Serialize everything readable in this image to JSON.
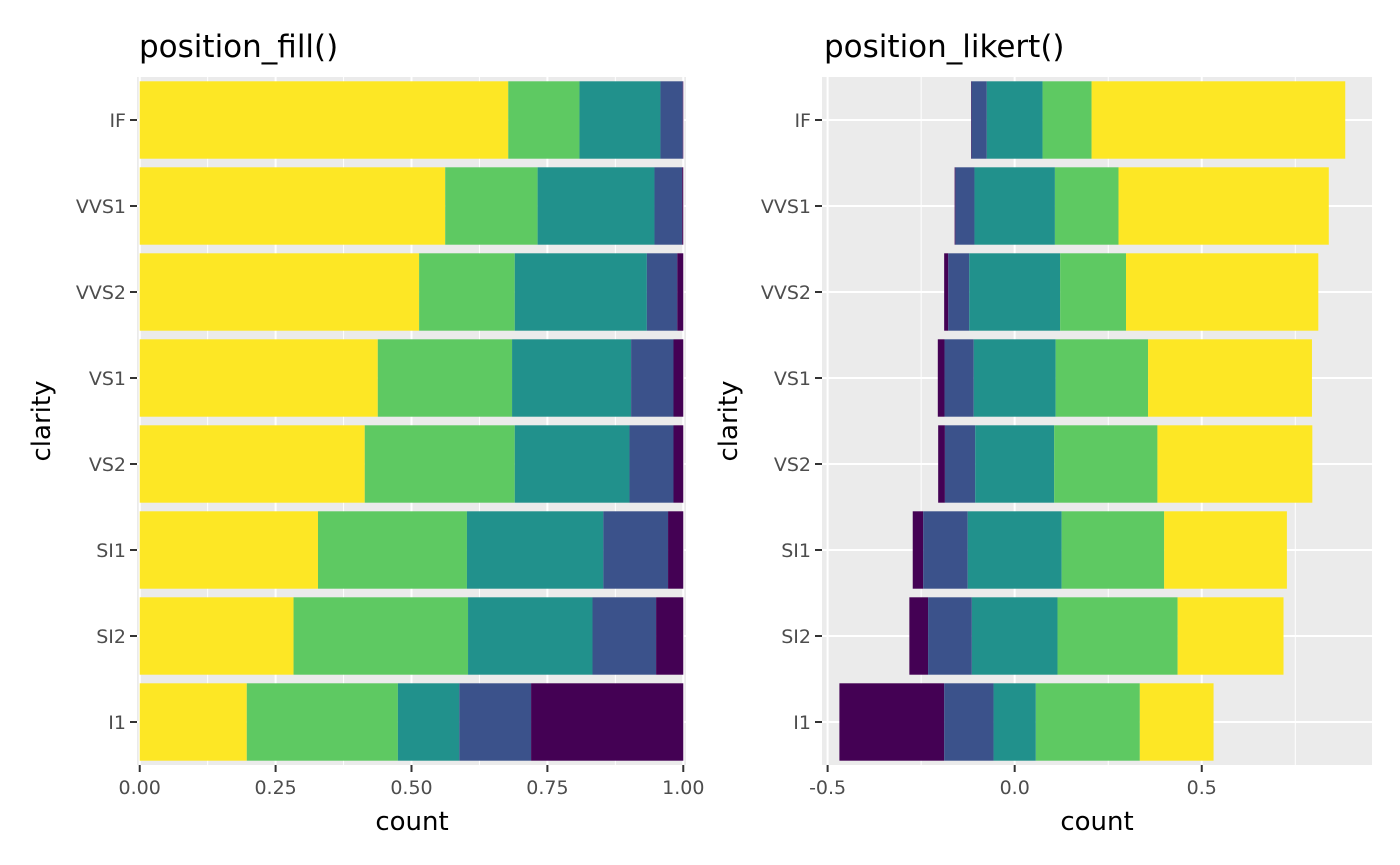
{
  "chart_data": [
    {
      "type": "bar",
      "orientation": "horizontal",
      "position": "fill",
      "title": "position_fill()",
      "xlabel": "count",
      "ylabel": "clarity",
      "xlim": [
        -0.005,
        1.005
      ],
      "xticks": [
        0,
        0.25,
        0.5,
        0.75,
        1
      ],
      "xtick_labels": [
        "0.00",
        "0.25",
        "0.50",
        "0.75",
        "1.00"
      ],
      "categories": [
        "I1",
        "SI2",
        "SI1",
        "VS2",
        "VS1",
        "VVS2",
        "VVS1",
        "IF"
      ],
      "segments": [
        {
          "color": "#FDE725",
          "values": [
            0.197,
            0.283,
            0.328,
            0.414,
            0.438,
            0.514,
            0.562,
            0.678
          ]
        },
        {
          "color": "#5EC962",
          "values": [
            0.278,
            0.321,
            0.274,
            0.276,
            0.247,
            0.176,
            0.17,
            0.131
          ]
        },
        {
          "color": "#21918C",
          "values": [
            0.113,
            0.229,
            0.251,
            0.211,
            0.219,
            0.243,
            0.215,
            0.149
          ]
        },
        {
          "color": "#3B528B",
          "values": [
            0.132,
            0.117,
            0.119,
            0.081,
            0.078,
            0.056,
            0.051,
            0.041
          ]
        },
        {
          "color": "#440154",
          "values": [
            0.28,
            0.05,
            0.028,
            0.018,
            0.018,
            0.011,
            0.002,
            0.001
          ]
        }
      ],
      "grid": true
    },
    {
      "type": "bar",
      "orientation": "horizontal",
      "position": "likert",
      "title": "position_likert()",
      "xlabel": "count",
      "ylabel": "clarity",
      "xlim": [
        -0.515,
        0.955
      ],
      "xticks": [
        -0.5,
        0,
        0.5
      ],
      "xtick_labels": [
        "-0.5",
        "0.0",
        "0.5"
      ],
      "categories": [
        "I1",
        "SI2",
        "SI1",
        "VS2",
        "VS1",
        "VVS2",
        "VVS1",
        "IF"
      ],
      "order": [
        "#440154",
        "#3B528B",
        "#21918C",
        "#5EC962",
        "#FDE725"
      ],
      "segments": [
        {
          "color": "#440154",
          "values": [
            0.28,
            0.05,
            0.028,
            0.018,
            0.018,
            0.011,
            0.002,
            0.001
          ]
        },
        {
          "color": "#3B528B",
          "values": [
            0.132,
            0.117,
            0.119,
            0.081,
            0.078,
            0.056,
            0.051,
            0.041
          ]
        },
        {
          "color": "#21918C",
          "values": [
            0.113,
            0.229,
            0.251,
            0.211,
            0.219,
            0.243,
            0.215,
            0.149
          ]
        },
        {
          "color": "#5EC962",
          "values": [
            0.278,
            0.321,
            0.274,
            0.276,
            0.247,
            0.176,
            0.17,
            0.131
          ]
        },
        {
          "color": "#FDE725",
          "values": [
            0.197,
            0.283,
            0.328,
            0.414,
            0.438,
            0.514,
            0.562,
            0.678
          ]
        }
      ],
      "grid": true
    }
  ]
}
